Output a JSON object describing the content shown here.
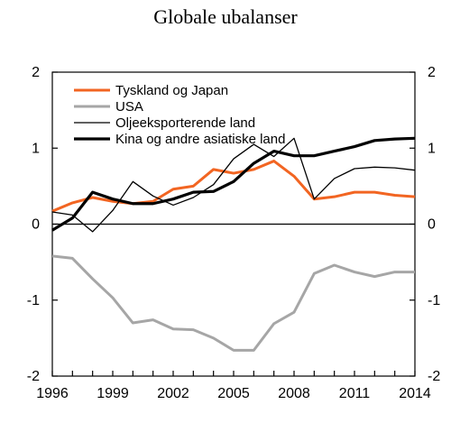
{
  "chart_data": {
    "type": "line",
    "title": "Globale ubalanser",
    "xlabel": "",
    "ylabel": "",
    "xlim": [
      1996,
      2014
    ],
    "ylim": [
      -2,
      2
    ],
    "x_ticks": [
      "1996",
      "1999",
      "2002",
      "2005",
      "2008",
      "2011",
      "2014"
    ],
    "y_ticks_left": [
      "2",
      "1",
      "0",
      "-1",
      "-2"
    ],
    "y_ticks_right": [
      "2",
      "1",
      "0",
      "-1",
      "-2"
    ],
    "grid": false,
    "legend_position": "top-left",
    "x": [
      1996,
      1997,
      1998,
      1999,
      2000,
      2001,
      2002,
      2003,
      2004,
      2005,
      2006,
      2007,
      2008,
      2009,
      2010,
      2011,
      2012,
      2013,
      2014
    ],
    "series": [
      {
        "name": "Tyskland og Japan",
        "color": "#f26522",
        "width": 3,
        "values": [
          0.17,
          0.28,
          0.35,
          0.3,
          0.27,
          0.3,
          0.46,
          0.5,
          0.72,
          0.67,
          0.72,
          0.83,
          0.63,
          0.33,
          0.36,
          0.42,
          0.42,
          0.38,
          0.36
        ]
      },
      {
        "name": "USA",
        "color": "#a6a6a6",
        "width": 3,
        "values": [
          -0.42,
          -0.45,
          -0.72,
          -0.97,
          -1.3,
          -1.26,
          -1.38,
          -1.39,
          -1.5,
          -1.66,
          -1.66,
          -1.31,
          -1.16,
          -0.65,
          -0.54,
          -0.63,
          -0.69,
          -0.63,
          -0.63
        ]
      },
      {
        "name": "Oljeeksporterende land",
        "color": "#000000",
        "width": 1.3,
        "values": [
          0.16,
          0.12,
          -0.1,
          0.18,
          0.56,
          0.37,
          0.25,
          0.35,
          0.52,
          0.86,
          1.05,
          0.89,
          1.13,
          0.33,
          0.6,
          0.73,
          0.75,
          0.74,
          0.71
        ]
      },
      {
        "name": "Kina og andre asiatiske land",
        "color": "#000000",
        "width": 3.2,
        "values": [
          -0.08,
          0.08,
          0.42,
          0.33,
          0.27,
          0.27,
          0.33,
          0.42,
          0.43,
          0.56,
          0.8,
          0.96,
          0.9,
          0.9,
          0.96,
          1.02,
          1.1,
          1.12,
          1.13
        ]
      }
    ]
  }
}
